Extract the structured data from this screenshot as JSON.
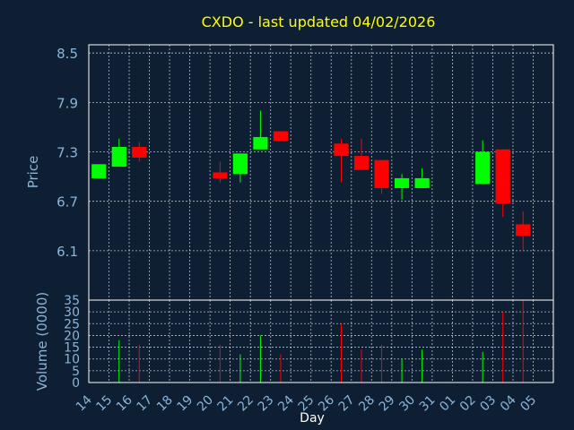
{
  "colors": {
    "background": "#0f1f33",
    "title": "#ffff00",
    "axis_text": "#8ab4d8",
    "label_text": "#ffffff",
    "grid": "#ffffff",
    "border": "#ffffff",
    "up": "#00ff00",
    "down": "#ff0000"
  },
  "chart_data": {
    "type": "candlestick",
    "title": "CXDO - last updated 04/02/2026",
    "price_panel": {
      "ylabel": "Price",
      "ylim": [
        5.5,
        8.6
      ],
      "yticks": [
        8.5,
        7.9,
        7.3,
        6.7,
        6.1
      ]
    },
    "volume_panel": {
      "ylabel": "Volume (0000)",
      "ylim": [
        0,
        35
      ],
      "yticks": [
        0,
        5,
        10,
        15,
        20,
        25,
        30,
        35
      ]
    },
    "xlabel": "Day",
    "x_labels": [
      "14",
      "15",
      "16",
      "17",
      "18",
      "19",
      "20",
      "21",
      "22",
      "23",
      "24",
      "25",
      "26",
      "27",
      "28",
      "29",
      "30",
      "31",
      "01",
      "02",
      "03",
      "04",
      "05"
    ],
    "grid": true,
    "candles": [
      {
        "day": "14",
        "open": 6.98,
        "close": 7.15,
        "high": 7.15,
        "low": 6.98
      },
      {
        "day": "15",
        "open": 7.12,
        "close": 7.36,
        "high": 7.46,
        "low": 7.12
      },
      {
        "day": "16",
        "open": 7.36,
        "close": 7.23,
        "high": 7.42,
        "low": 7.18
      },
      {
        "day": "20",
        "open": 7.05,
        "close": 6.98,
        "high": 7.18,
        "low": 6.93
      },
      {
        "day": "21",
        "open": 7.03,
        "close": 7.28,
        "high": 7.28,
        "low": 6.93
      },
      {
        "day": "22",
        "open": 7.33,
        "close": 7.48,
        "high": 7.8,
        "low": 7.33
      },
      {
        "day": "23",
        "open": 7.55,
        "close": 7.43,
        "high": 7.55,
        "low": 7.43
      },
      {
        "day": "26",
        "open": 7.4,
        "close": 7.25,
        "high": 7.46,
        "low": 6.93
      },
      {
        "day": "27",
        "open": 7.25,
        "close": 7.08,
        "high": 7.46,
        "low": 7.08
      },
      {
        "day": "28",
        "open": 7.2,
        "close": 6.86,
        "high": 7.2,
        "low": 6.79
      },
      {
        "day": "29",
        "open": 6.86,
        "close": 6.98,
        "high": 7.03,
        "low": 6.72
      },
      {
        "day": "30",
        "open": 6.86,
        "close": 6.98,
        "high": 7.1,
        "low": 6.86
      },
      {
        "day": "02",
        "open": 6.91,
        "close": 7.3,
        "high": 7.44,
        "low": 6.91
      },
      {
        "day": "03",
        "open": 7.33,
        "close": 6.67,
        "high": 7.33,
        "low": 6.51
      },
      {
        "day": "04",
        "open": 6.42,
        "close": 6.28,
        "high": 6.58,
        "low": 6.1
      }
    ],
    "volume": [
      {
        "day": "15",
        "value": 18,
        "dir": "up"
      },
      {
        "day": "16",
        "value": 16,
        "dir": "down"
      },
      {
        "day": "20",
        "value": 16,
        "dir": "down"
      },
      {
        "day": "21",
        "value": 12,
        "dir": "up"
      },
      {
        "day": "22",
        "value": 20,
        "dir": "up"
      },
      {
        "day": "23",
        "value": 12,
        "dir": "down"
      },
      {
        "day": "26",
        "value": 25,
        "dir": "down"
      },
      {
        "day": "27",
        "value": 14,
        "dir": "down"
      },
      {
        "day": "28",
        "value": 16,
        "dir": "down"
      },
      {
        "day": "29",
        "value": 10,
        "dir": "up"
      },
      {
        "day": "30",
        "value": 14,
        "dir": "up"
      },
      {
        "day": "02",
        "value": 13,
        "dir": "up"
      },
      {
        "day": "03",
        "value": 30,
        "dir": "down"
      },
      {
        "day": "04",
        "value": 35,
        "dir": "down"
      }
    ]
  }
}
